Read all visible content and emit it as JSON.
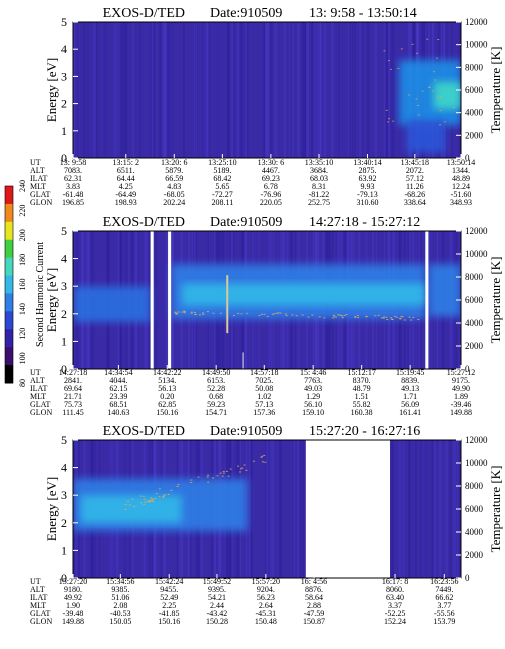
{
  "colorbar": {
    "label": "Second Harmonic Current",
    "ticks": [
      "80",
      "100",
      "120",
      "140",
      "160",
      "180",
      "200",
      "220",
      "240"
    ],
    "colors": [
      "#000000",
      "#3a0f6e",
      "#3321a8",
      "#2c47d6",
      "#2f7fe6",
      "#33b8e8",
      "#45d8c0",
      "#3fcf3f",
      "#e6e61e",
      "#f08a1c",
      "#e01818"
    ]
  },
  "chart_data": [
    {
      "type": "heatmap",
      "title": "EXOS-D/TED",
      "date_label": "Date:910509",
      "time_range": "13: 9:58 - 13:50:14",
      "ylabel": "Energy [eV]",
      "y2label": "Temperature [K]",
      "ylim": [
        0,
        5
      ],
      "y2lim": [
        0,
        12000
      ],
      "yticks": [
        "0",
        "1",
        "2",
        "3",
        "4",
        "5"
      ],
      "y2ticks": [
        "0",
        "2000",
        "4000",
        "6000",
        "8000",
        "10000",
        "12000"
      ],
      "background": "#3a2aa6",
      "gaps": [],
      "features": [
        {
          "name": "warm plasma",
          "x": [
            0.84,
            1.0
          ],
          "y": [
            1.2,
            3.6
          ],
          "level": 160,
          "color": "#1f8fe6"
        },
        {
          "name": "core",
          "x": [
            0.93,
            1.0
          ],
          "y": [
            1.8,
            2.8
          ],
          "level": 180,
          "color": "#40d8c8"
        },
        {
          "name": "tail",
          "x": [
            0.86,
            0.96
          ],
          "y": [
            0.2,
            1.4
          ],
          "level": 130,
          "color": "#2c57d8"
        }
      ],
      "table": {
        "labels": [
          "UT",
          "ALT",
          "ILAT",
          "MLT",
          "GLAT",
          "GLON"
        ],
        "columns": [
          {
            "pos": 0.0,
            "values": [
              "13: 9:58",
              "7083.",
              "62.31",
              "3.83",
              "-61.48",
              "196.85"
            ]
          },
          {
            "pos": 0.136,
            "values": [
              "13:15: 2",
              "6511.",
              "64.44",
              "4.25",
              "-64.49",
              "198.93"
            ]
          },
          {
            "pos": 0.261,
            "values": [
              "13:20: 6",
              "5879.",
              "66.59",
              "4.83",
              "-68.05",
              "202.24"
            ]
          },
          {
            "pos": 0.385,
            "values": [
              "13:25:10",
              "5189.",
              "68.42",
              "5.65",
              "-72.27",
              "208.11"
            ]
          },
          {
            "pos": 0.51,
            "values": [
              "13:30: 6",
              "4467.",
              "69.23",
              "6.78",
              "-76.96",
              "220.05"
            ]
          },
          {
            "pos": 0.634,
            "values": [
              "13:35:10",
              "3684.",
              "68.03",
              "8.31",
              "-81.22",
              "252.75"
            ]
          },
          {
            "pos": 0.759,
            "values": [
              "13:40:14",
              "2875.",
              "63.92",
              "9.93",
              "-79.13",
              "310.60"
            ]
          },
          {
            "pos": 0.881,
            "values": [
              "13:45:18",
              "2072.",
              "57.12",
              "11.26",
              "-68.26",
              "338.64"
            ]
          },
          {
            "pos": 1.0,
            "values": [
              "13:50:14",
              "1344.",
              "48.89",
              "12.24",
              "-51.60",
              "348.93"
            ]
          }
        ]
      }
    },
    {
      "type": "heatmap",
      "title": "EXOS-D/TED",
      "date_label": "Date:910509",
      "time_range": "14:27:18 - 15:27:12",
      "ylabel": "Energy [eV]",
      "y2label": "Temperature [K]",
      "ylim": [
        0,
        5
      ],
      "y2lim": [
        0,
        12000
      ],
      "yticks": [
        "0",
        "1",
        "2",
        "3",
        "4",
        "5"
      ],
      "y2ticks": [
        "0",
        "2000",
        "4000",
        "6000",
        "8000",
        "10000",
        "12000"
      ],
      "background": "#3a2aa6",
      "gaps": [
        [
          0.2,
          0.208
        ],
        [
          0.245,
          0.253
        ],
        [
          0.908,
          0.916
        ]
      ],
      "features": [
        {
          "name": "band start",
          "x": [
            0.0,
            0.2
          ],
          "y": [
            1.7,
            3.0
          ],
          "level": 150,
          "color": "#2a6fe0"
        },
        {
          "name": "band main",
          "x": [
            0.253,
            0.908
          ],
          "y": [
            1.8,
            3.8
          ],
          "level": 150,
          "color": "#2f7fe6"
        },
        {
          "name": "band core",
          "x": [
            0.28,
            0.908
          ],
          "y": [
            2.3,
            3.1
          ],
          "level": 170,
          "color": "#33b8e8"
        },
        {
          "name": "band end",
          "x": [
            0.916,
            1.0
          ],
          "y": [
            1.9,
            3.8
          ],
          "level": 150,
          "color": "#2f7fe6"
        }
      ],
      "table": {
        "labels": [
          "UT",
          "ALT",
          "ILAT",
          "MLT",
          "GLAT",
          "GLON"
        ],
        "columns": [
          {
            "pos": 0.0,
            "values": [
              "14:27:18",
              "2841.",
              "69.64",
              "21.71",
              "75.73",
              "111.45"
            ]
          },
          {
            "pos": 0.117,
            "values": [
              "14:34:54",
              "4044.",
              "62.15",
              "23.39",
              "68.51",
              "140.63"
            ]
          },
          {
            "pos": 0.243,
            "values": [
              "14:42:22",
              "5134.",
              "56.13",
              "0.20",
              "62.85",
              "150.16"
            ]
          },
          {
            "pos": 0.369,
            "values": [
              "14:49:50",
              "6153.",
              "52.28",
              "0.68",
              "59.23",
              "154.71"
            ]
          },
          {
            "pos": 0.493,
            "values": [
              "14:57:18",
              "7025.",
              "50.08",
              "1.02",
              "57.13",
              "157.36"
            ]
          },
          {
            "pos": 0.619,
            "values": [
              "15: 4:46",
              "7763.",
              "49.03",
              "1.29",
              "56.10",
              "159.10"
            ]
          },
          {
            "pos": 0.744,
            "values": [
              "15:12:17",
              "8370.",
              "48.79",
              "1.51",
              "55.82",
              "160.38"
            ]
          },
          {
            "pos": 0.869,
            "values": [
              "15:19:45",
              "8839.",
              "49.13",
              "1.71",
              "56.09",
              "161.41"
            ]
          },
          {
            "pos": 1.0,
            "values": [
              "15:27:12",
              "9175.",
              "49.90",
              "1.89",
              "-39.46",
              "149.88"
            ]
          }
        ]
      }
    },
    {
      "type": "heatmap",
      "title": "EXOS-D/TED",
      "date_label": "Date:910509",
      "time_range": "15:27:20 - 16:27:16",
      "ylabel": "Energy [eV]",
      "y2label": "Temperature [K]",
      "ylim": [
        0,
        5
      ],
      "y2lim": [
        0,
        12000
      ],
      "yticks": [
        "0",
        "1",
        "2",
        "3",
        "4",
        "5"
      ],
      "y2ticks": [
        "0",
        "2000",
        "4000",
        "6000",
        "8000",
        "10000",
        "12000"
      ],
      "background": "#3a2aa6",
      "gaps": [
        [
          0.6,
          0.817
        ]
      ],
      "features": [
        {
          "name": "band",
          "x": [
            0.0,
            0.45
          ],
          "y": [
            1.7,
            3.6
          ],
          "level": 150,
          "color": "#2f7fe6"
        },
        {
          "name": "band core",
          "x": [
            0.02,
            0.28
          ],
          "y": [
            2.0,
            3.0
          ],
          "level": 170,
          "color": "#33b8e8"
        }
      ],
      "table": {
        "labels": [
          "UT",
          "ALT",
          "ILAT",
          "MLT",
          "GLAT",
          "GLON"
        ],
        "columns": [
          {
            "pos": 0.0,
            "values": [
              "15:27:20",
              "9180.",
              "49.92",
              "1.90",
              "-39.48",
              "149.88"
            ]
          },
          {
            "pos": 0.122,
            "values": [
              "15:34:56",
              "9385.",
              "51.06",
              "2.08",
              "-40.53",
              "150.05"
            ]
          },
          {
            "pos": 0.248,
            "values": [
              "15:42:24",
              "9455.",
              "52.49",
              "2.25",
              "-41.85",
              "150.16"
            ]
          },
          {
            "pos": 0.371,
            "values": [
              "15:49:52",
              "9395.",
              "54.21",
              "2.44",
              "-43.42",
              "150.28"
            ]
          },
          {
            "pos": 0.497,
            "values": [
              "15:57:20",
              "9204.",
              "56.23",
              "2.64",
              "-45.31",
              "150.48"
            ]
          },
          {
            "pos": 0.621,
            "values": [
              "16: 4:56",
              "8876.",
              "58.64",
              "2.88",
              "-47.59",
              "150.87"
            ]
          },
          {
            "pos": 0.83,
            "values": [
              "16:17: 8",
              "8060.",
              "63.40",
              "3.37",
              "-52.25",
              "152.24"
            ]
          },
          {
            "pos": 0.957,
            "values": [
              "16:23:56",
              "7449.",
              "66.62",
              "3.77",
              "-55.56",
              "153.79"
            ]
          }
        ]
      }
    }
  ]
}
